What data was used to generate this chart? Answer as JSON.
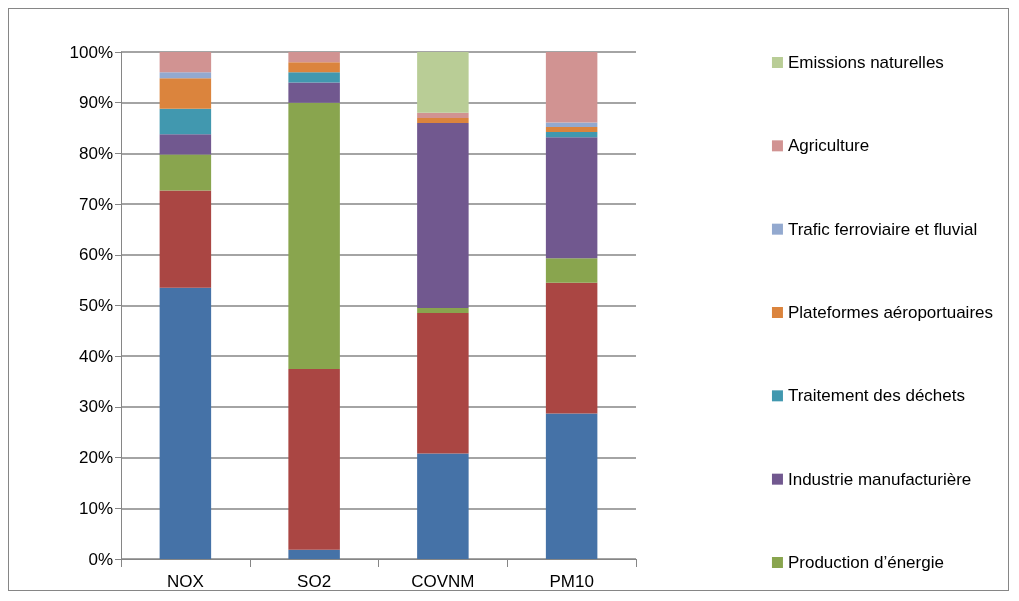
{
  "chart_data": {
    "type": "bar",
    "stacked": true,
    "categories": [
      "NOX",
      "SO2",
      "COVNM",
      "PM10"
    ],
    "series": [
      {
        "color": "#4572a7",
        "values": [
          53.5,
          1.8,
          20.8,
          28.7
        ]
      },
      {
        "color": "#aa4643",
        "values": [
          19.2,
          35.7,
          27.7,
          25.8
        ]
      },
      {
        "name": "Production d’énergie",
        "color": "#89a54e",
        "values": [
          7.1,
          52.5,
          1,
          4.8
        ]
      },
      {
        "name": "Industrie manufacturière",
        "color": "#71588f",
        "values": [
          4,
          4,
          36.5,
          23.9
        ]
      },
      {
        "name": "Traitement des déchets",
        "color": "#4198af",
        "values": [
          5,
          2,
          0,
          1
        ]
      },
      {
        "name": "Plateformes aéroportuaires",
        "color": "#db843d",
        "values": [
          6,
          2,
          1,
          1
        ]
      },
      {
        "name": "Trafic ferroviaire et fluvial",
        "color": "#93a9cf",
        "values": [
          1.2,
          0,
          0,
          0.9
        ]
      },
      {
        "name": "Agriculture",
        "color": "#d19392",
        "values": [
          4,
          2,
          1,
          13.9
        ]
      },
      {
        "name": "Emissions naturelles",
        "color": "#b9cd96",
        "values": [
          0,
          0,
          12,
          0
        ]
      }
    ],
    "ylim": [
      0,
      100
    ],
    "yticks": [
      {
        "value": 0,
        "label": "0%"
      },
      {
        "value": 10,
        "label": "10%"
      },
      {
        "value": 20,
        "label": "20%"
      },
      {
        "value": 30,
        "label": "30%"
      },
      {
        "value": 40,
        "label": "40%"
      },
      {
        "value": 50,
        "label": "50%"
      },
      {
        "value": 60,
        "label": "60%"
      },
      {
        "value": 70,
        "label": "70%"
      },
      {
        "value": 80,
        "label": "80%"
      },
      {
        "value": 90,
        "label": "90%"
      },
      {
        "value": 100,
        "label": "100%"
      }
    ],
    "grid": "y",
    "legend": "right"
  }
}
